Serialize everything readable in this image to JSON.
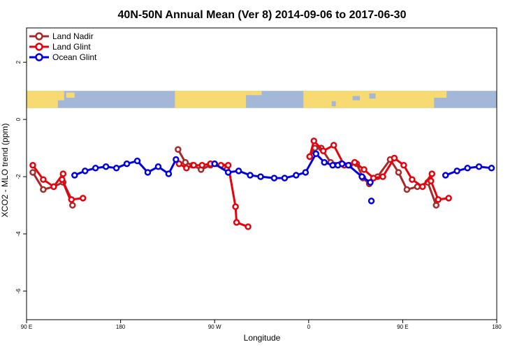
{
  "chart_data": {
    "type": "line",
    "title": "40N-50N Annual Mean (Ver 8)   2014-09-06 to 2017-06-30",
    "xlabel": "Longitude",
    "ylabel": "XCO2 - MLO trend (ppm)",
    "xlim": [
      90,
      540
    ],
    "ylim": [
      -7.0,
      3.2
    ],
    "x_ticks": [
      {
        "value": 90,
        "label": "90 E"
      },
      {
        "value": 180,
        "label": "180"
      },
      {
        "value": 270,
        "label": "90 W"
      },
      {
        "value": 360,
        "label": "0"
      },
      {
        "value": 450,
        "label": "90 E"
      },
      {
        "value": 540,
        "label": "180"
      }
    ],
    "y_ticks": [
      {
        "value": 2,
        "label": "2"
      },
      {
        "value": 0,
        "label": "0"
      },
      {
        "value": -2,
        "label": "-2"
      },
      {
        "value": -4,
        "label": "-4"
      },
      {
        "value": -6,
        "label": "-6"
      }
    ],
    "legend_position": "top-left",
    "map_band": {
      "y_range": [
        0.4,
        1.0
      ],
      "land_color": "#f8da72",
      "ocean_color": "#a3b8d8"
    },
    "series": [
      {
        "name": "Land Nadir",
        "color": "#a52a2a",
        "segments": [
          [
            [
              96,
              -1.85
            ],
            [
              106,
              -2.45
            ],
            [
              116,
              -2.35
            ],
            [
              125,
              -2.2
            ],
            [
              134,
              -3.0
            ]
          ],
          [
            [
              235,
              -1.05
            ],
            [
              242,
              -1.5
            ],
            [
              249,
              -1.6
            ],
            [
              257,
              -1.75
            ],
            [
              266,
              -1.6
            ],
            [
              278,
              -1.65
            ]
          ],
          [
            [
              361,
              -1.3
            ],
            [
              366,
              -1.0
            ],
            [
              372,
              -1.0
            ],
            [
              381,
              -1.5
            ],
            [
              391,
              -1.55
            ],
            [
              399,
              -1.6
            ],
            [
              406,
              -1.55
            ],
            [
              412,
              -2.05
            ],
            [
              418,
              -2.25
            ],
            [
              426,
              -2.0
            ],
            [
              438,
              -1.4
            ],
            [
              446,
              -1.85
            ],
            [
              454,
              -2.45
            ],
            [
              464,
              -2.35
            ],
            [
              474,
              -2.2
            ],
            [
              482,
              -3.0
            ]
          ]
        ]
      },
      {
        "name": "Land Glint",
        "color": "#e8000b",
        "segments": [
          [
            [
              96,
              -1.6
            ],
            [
              106,
              -2.1
            ],
            [
              116,
              -2.35
            ],
            [
              125,
              -1.9
            ],
            [
              124,
              -2.1
            ],
            [
              133,
              -2.8
            ],
            [
              144,
              -2.75
            ]
          ],
          [
            [
              236,
              -1.55
            ],
            [
              243,
              -1.7
            ],
            [
              250,
              -1.6
            ],
            [
              258,
              -1.6
            ],
            [
              266,
              -1.55
            ],
            [
              276,
              -1.6
            ],
            [
              283,
              -1.6
            ],
            [
              290,
              -3.05
            ],
            [
              291,
              -3.6
            ],
            [
              302,
              -3.75
            ]
          ],
          [
            [
              361,
              -1.3
            ],
            [
              365,
              -0.75
            ],
            [
              374,
              -1.1
            ],
            [
              384,
              -0.9
            ],
            [
              394,
              -1.6
            ],
            [
              404,
              -1.5
            ],
            [
              413,
              -1.75
            ],
            [
              422,
              -2.05
            ],
            [
              431,
              -2.0
            ],
            [
              442,
              -1.35
            ],
            [
              451,
              -1.6
            ],
            [
              459,
              -2.1
            ],
            [
              469,
              -2.35
            ],
            [
              478,
              -1.9
            ],
            [
              477,
              -2.15
            ],
            [
              484,
              -2.8
            ],
            [
              494,
              -2.75
            ]
          ]
        ]
      },
      {
        "name": "Ocean Glint",
        "color": "#0000e0",
        "segments": [
          [
            [
              136,
              -1.95
            ],
            [
              146,
              -1.8
            ],
            [
              156,
              -1.7
            ],
            [
              166,
              -1.65
            ],
            [
              176,
              -1.7
            ],
            [
              186,
              -1.55
            ],
            [
              196,
              -1.45
            ],
            [
              206,
              -1.85
            ],
            [
              216,
              -1.65
            ],
            [
              226,
              -1.9
            ],
            [
              233,
              -1.4
            ]
          ],
          [
            [
              270,
              -1.55
            ],
            [
              283,
              -1.85
            ],
            [
              293,
              -1.8
            ],
            [
              304,
              -1.95
            ],
            [
              314,
              -2.0
            ],
            [
              327,
              -2.05
            ],
            [
              337,
              -2.05
            ],
            [
              348,
              -1.95
            ],
            [
              357,
              -1.85
            ],
            [
              367,
              -1.2
            ],
            [
              375,
              -1.5
            ],
            [
              383,
              -1.6
            ],
            [
              388,
              -1.6
            ],
            [
              392,
              -1.55
            ],
            [
              398,
              -1.6
            ],
            [
              411,
              -2.0
            ],
            [
              419,
              -2.2
            ]
          ],
          [
            [
              420,
              -2.85
            ]
          ],
          [
            [
              491,
              -1.95
            ],
            [
              502,
              -1.8
            ],
            [
              512,
              -1.7
            ],
            [
              523,
              -1.65
            ],
            [
              535,
              -1.7
            ]
          ]
        ]
      }
    ]
  }
}
